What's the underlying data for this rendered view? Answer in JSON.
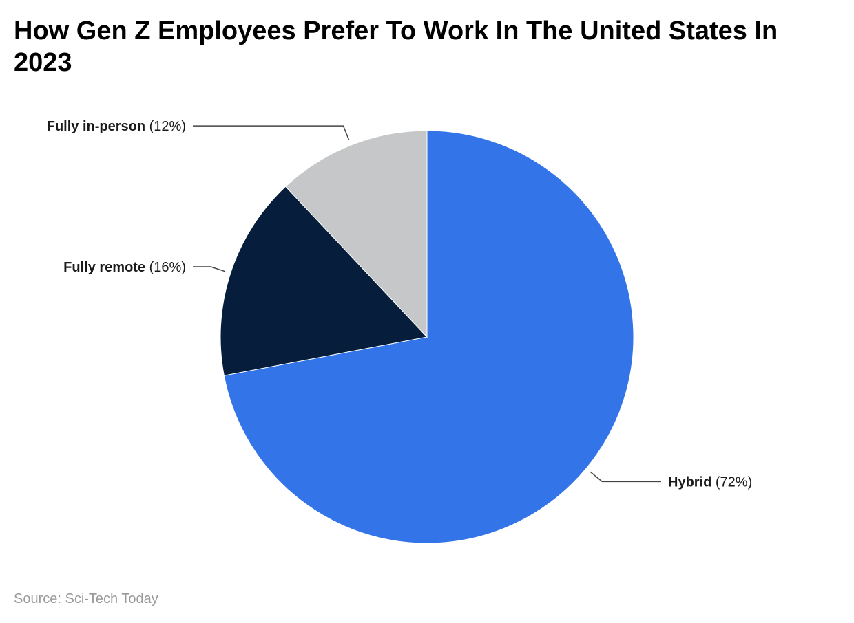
{
  "title": "How Gen Z Employees Prefer To Work In The United States In 2023",
  "source": "Source: Sci-Tech Today",
  "chart_data": {
    "type": "pie",
    "title": "How Gen Z Employees Prefer To Work In The United States In 2023",
    "slices": [
      {
        "label": "Hybrid",
        "value": 72,
        "value_text": "(72%)",
        "color": "#3375e8"
      },
      {
        "label": "Fully remote",
        "value": 16,
        "value_text": "(16%)",
        "color": "#061e3c"
      },
      {
        "label": "Fully in-person",
        "value": 12,
        "value_text": "(12%)",
        "color": "#c6c7c9"
      }
    ],
    "start": "12 o'clock",
    "direction": "clockwise",
    "legend": "none"
  }
}
